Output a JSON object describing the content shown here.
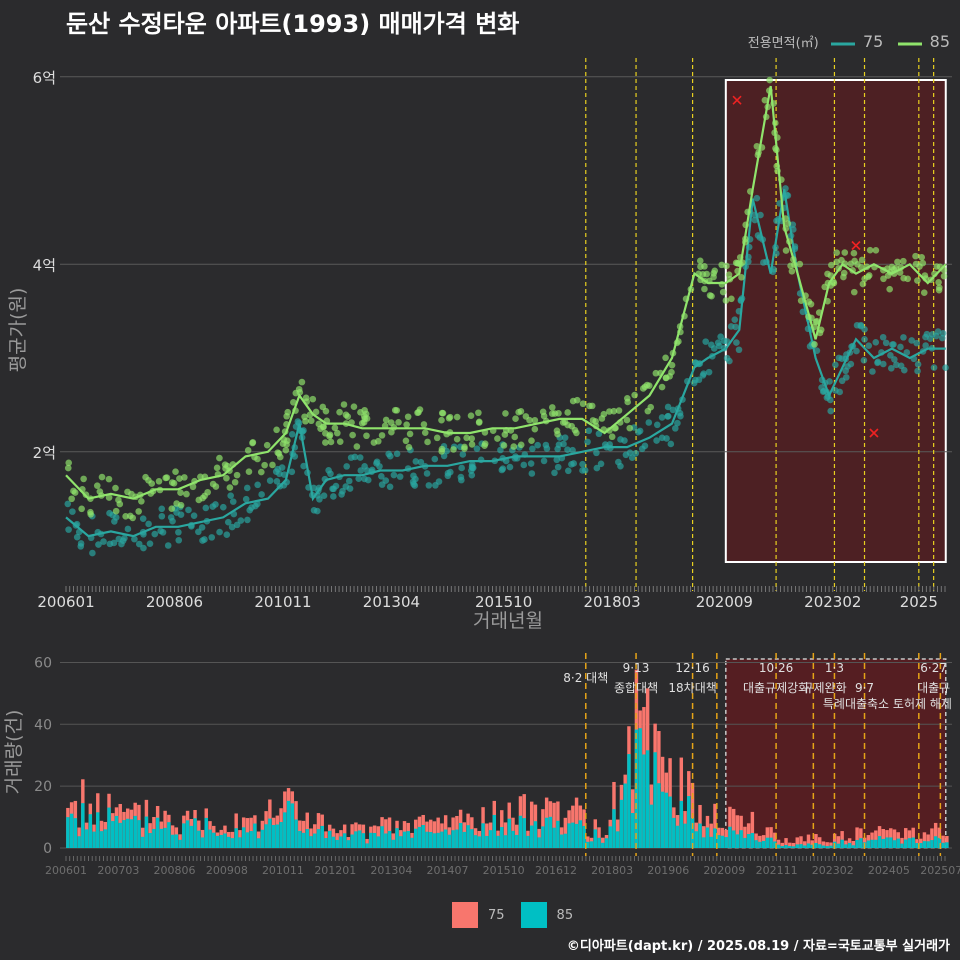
{
  "title": "둔산 수정타운 아파트(1993) 매매가격 변화",
  "legend": {
    "title": "전용면적(㎡)",
    "items": [
      {
        "label": "75",
        "color": "#2aa7a0"
      },
      {
        "label": "85",
        "color": "#90e46c"
      }
    ]
  },
  "bottom_legend": [
    {
      "label": "75",
      "color": "#f8766d"
    },
    {
      "label": "85",
      "color": "#00bfc4"
    }
  ],
  "credit": "©디아파트(dapt.kr) / 2025.08.19 / 자료=국토교통부 실거래가",
  "chart_data": [
    {
      "type": "line",
      "xlabel": "거래년월",
      "ylabel": "평균가(원)",
      "x_ticks": [
        "200601",
        "200806",
        "201011",
        "201304",
        "201510",
        "201803",
        "202009",
        "202302",
        "2025"
      ],
      "y_ticks": [
        {
          "value": 2,
          "label": "2억"
        },
        {
          "value": 4,
          "label": "4억"
        },
        {
          "value": 6,
          "label": "6억"
        }
      ],
      "ylim": [
        0.6,
        6.2
      ],
      "vlines": [
        "2017.58",
        "2018.70",
        "2019.96",
        "2021.82",
        "2023.12",
        "2023.79",
        "2025.00",
        "2025.33"
      ],
      "highlight_range": [
        "2020.70",
        "2025.60"
      ],
      "series": [
        {
          "name": "75",
          "x": [
            2006.0,
            2006.5,
            2007.0,
            2007.5,
            2008.0,
            2008.5,
            2009.0,
            2009.5,
            2010.0,
            2010.5,
            2010.9,
            2011.2,
            2011.5,
            2011.8,
            2012.2,
            2012.6,
            2013.0,
            2013.5,
            2014.0,
            2014.5,
            2015.0,
            2015.5,
            2016.0,
            2016.5,
            2017.0,
            2017.5,
            2018.0,
            2018.5,
            2019.0,
            2019.5,
            2020.0,
            2020.3,
            2020.7,
            2021.0,
            2021.3,
            2021.7,
            2022.0,
            2022.3,
            2022.7,
            2023.0,
            2023.3,
            2023.6,
            2024.0,
            2024.4,
            2024.8,
            2025.2,
            2025.6
          ],
          "y": [
            1.3,
            1.1,
            1.15,
            1.1,
            1.2,
            1.2,
            1.25,
            1.3,
            1.45,
            1.5,
            1.7,
            2.3,
            1.5,
            1.7,
            1.75,
            1.75,
            1.8,
            1.8,
            1.85,
            1.85,
            1.9,
            1.9,
            1.95,
            1.95,
            1.95,
            2.0,
            2.05,
            2.05,
            2.15,
            2.3,
            2.9,
            3.0,
            3.1,
            3.3,
            4.7,
            3.9,
            4.8,
            3.9,
            3.0,
            2.6,
            2.9,
            3.2,
            3.0,
            3.1,
            3.0,
            3.1,
            3.1
          ]
        },
        {
          "name": "85",
          "x": [
            2006.0,
            2006.5,
            2007.0,
            2007.5,
            2008.0,
            2008.5,
            2009.0,
            2009.5,
            2010.0,
            2010.5,
            2010.9,
            2011.2,
            2011.5,
            2011.8,
            2012.2,
            2012.6,
            2013.0,
            2013.5,
            2014.0,
            2014.5,
            2015.0,
            2015.5,
            2016.0,
            2016.5,
            2017.0,
            2017.5,
            2018.0,
            2018.5,
            2019.0,
            2019.5,
            2020.0,
            2020.3,
            2020.7,
            2021.0,
            2021.3,
            2021.7,
            2022.0,
            2022.3,
            2022.7,
            2023.0,
            2023.3,
            2023.6,
            2024.0,
            2024.4,
            2024.8,
            2025.2,
            2025.6
          ],
          "y": [
            1.75,
            1.5,
            1.55,
            1.5,
            1.6,
            1.6,
            1.7,
            1.75,
            1.95,
            2.0,
            2.2,
            2.6,
            2.4,
            2.3,
            2.3,
            2.25,
            2.25,
            2.25,
            2.25,
            2.2,
            2.2,
            2.25,
            2.25,
            2.3,
            2.35,
            2.35,
            2.2,
            2.4,
            2.6,
            3.0,
            3.9,
            3.8,
            3.8,
            3.9,
            4.8,
            5.9,
            4.4,
            3.9,
            3.2,
            3.8,
            4.0,
            3.9,
            4.0,
            3.9,
            4.0,
            3.8,
            4.0
          ]
        }
      ],
      "outliers_x": [
        2020.95,
        2023.6,
        2024.0
      ],
      "outliers_y": [
        5.75,
        4.2,
        2.2
      ]
    },
    {
      "type": "bar",
      "ylabel": "거래량(건)",
      "x_ticks": [
        "200601",
        "200703",
        "200806",
        "200908",
        "201011",
        "201201",
        "201304",
        "201407",
        "201510",
        "201612",
        "201803",
        "201906",
        "202009",
        "202111",
        "202302",
        "202405",
        "202507"
      ],
      "y_ticks": [
        0,
        20,
        40,
        60
      ],
      "ylim": [
        0,
        65
      ],
      "vlines": [
        "2017.58",
        "2018.70",
        "2019.96",
        "2020.50",
        "2021.82",
        "2022.65",
        "2023.12",
        "2023.79",
        "2025.00",
        "2025.48"
      ],
      "highlight_range": [
        "2020.70",
        "2025.60"
      ],
      "policy_labels_row1": [
        "8·2 대책",
        "9·13",
        "12·16",
        "10·26",
        "1·3",
        "6·27"
      ],
      "policy_labels_row2": [
        "종합대책",
        "18차대책",
        "대출규제강화",
        "규제완화",
        "9·7",
        "대출규"
      ],
      "policy_labels_row3": [
        "특례대출축소 토허제 해제"
      ],
      "volume_75": [
        {
          "x": 2006.5,
          "y": 18
        },
        {
          "x": 2007.5,
          "y": 12
        },
        {
          "x": 2008.0,
          "y": 16
        },
        {
          "x": 2008.5,
          "y": 10
        },
        {
          "x": 2009.0,
          "y": 13
        },
        {
          "x": 2009.5,
          "y": 11
        },
        {
          "x": 2010.0,
          "y": 14
        },
        {
          "x": 2010.5,
          "y": 12
        },
        {
          "x": 2010.9,
          "y": 20
        },
        {
          "x": 2011.5,
          "y": 12
        },
        {
          "x": 2012.0,
          "y": 6
        },
        {
          "x": 2013.0,
          "y": 8
        },
        {
          "x": 2014.0,
          "y": 10
        },
        {
          "x": 2015.0,
          "y": 12
        },
        {
          "x": 2016.0,
          "y": 13
        },
        {
          "x": 2017.0,
          "y": 18
        },
        {
          "x": 2018.0,
          "y": 5
        },
        {
          "x": 2018.7,
          "y": 47
        },
        {
          "x": 2019.5,
          "y": 32
        },
        {
          "x": 2020.0,
          "y": 16
        },
        {
          "x": 2021.0,
          "y": 12
        },
        {
          "x": 2022.0,
          "y": 3
        },
        {
          "x": 2023.0,
          "y": 5
        },
        {
          "x": 2024.0,
          "y": 6
        },
        {
          "x": 2025.0,
          "y": 8
        }
      ],
      "volume_85": [
        {
          "x": 2006.5,
          "y": 12
        },
        {
          "x": 2007.5,
          "y": 8
        },
        {
          "x": 2008.0,
          "y": 10
        },
        {
          "x": 2008.5,
          "y": 7
        },
        {
          "x": 2009.0,
          "y": 9
        },
        {
          "x": 2009.5,
          "y": 7
        },
        {
          "x": 2010.0,
          "y": 9
        },
        {
          "x": 2010.5,
          "y": 8
        },
        {
          "x": 2010.9,
          "y": 14
        },
        {
          "x": 2011.5,
          "y": 7
        },
        {
          "x": 2012.0,
          "y": 4
        },
        {
          "x": 2013.0,
          "y": 5
        },
        {
          "x": 2014.0,
          "y": 6
        },
        {
          "x": 2015.0,
          "y": 7
        },
        {
          "x": 2016.0,
          "y": 8
        },
        {
          "x": 2017.0,
          "y": 10
        },
        {
          "x": 2018.0,
          "y": 3
        },
        {
          "x": 2018.7,
          "y": 35
        },
        {
          "x": 2019.5,
          "y": 20
        },
        {
          "x": 2020.0,
          "y": 9
        },
        {
          "x": 2021.0,
          "y": 6
        },
        {
          "x": 2022.0,
          "y": 1
        },
        {
          "x": 2023.0,
          "y": 2
        },
        {
          "x": 2024.0,
          "y": 3
        },
        {
          "x": 2025.0,
          "y": 4
        }
      ]
    }
  ]
}
